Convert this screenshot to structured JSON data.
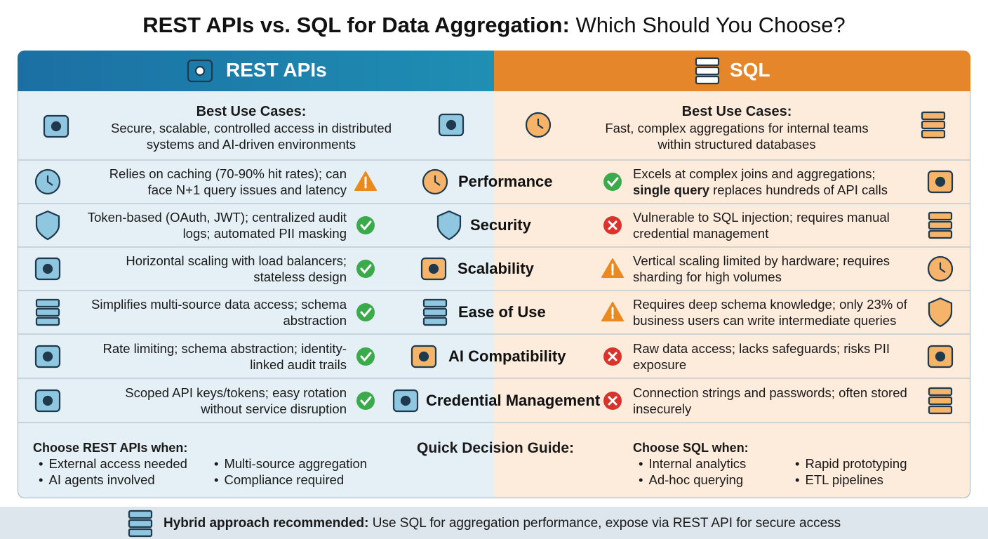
{
  "header": {
    "title_bold": "REST APIs vs. SQL for Data Aggregation:",
    "title_regular": "Which Should You Choose?"
  },
  "columns": {
    "rest": "REST APIs",
    "sql": "SQL"
  },
  "best_use": {
    "rest": {
      "heading": "Best Use Cases:",
      "text": "Secure, scalable, controlled access in distributed systems and AI-driven environments"
    },
    "sql": {
      "heading": "Best Use Cases:",
      "text": "Fast, complex aggregations for internal teams within structured databases"
    }
  },
  "rows": [
    {
      "label": "Performance",
      "rest_text": "Relies on caching (70-90% hit rates); can face N+1 query issues and latency",
      "rest_status": "warning",
      "sql_text": [
        {
          "text": "Excels at complex joins and aggregations; "
        },
        {
          "text": "single query",
          "bold": true
        },
        {
          "text": " replaces hundreds of API calls"
        }
      ],
      "sql_status": "check"
    },
    {
      "label": "Security",
      "rest_text": "Token-based (OAuth, JWT); centralized audit logs; automated PII masking",
      "rest_status": "check",
      "sql_text": "Vulnerable to SQL injection; requires manual credential management",
      "sql_status": "cross"
    },
    {
      "label": "Scalability",
      "rest_text": "Horizontal scaling with load balancers; stateless design",
      "rest_status": "check",
      "sql_text": "Vertical scaling limited by hardware; requires sharding for high volumes",
      "sql_status": "warning"
    },
    {
      "label": "Ease of Use",
      "rest_text": "Simplifies multi-source data access; schema abstraction",
      "rest_status": "check",
      "sql_text": "Requires deep schema knowledge; only 23% of business users can write intermediate queries",
      "sql_status": "warning"
    },
    {
      "label": "AI Compatibility",
      "rest_text": "Rate limiting; schema abstraction; identity-linked audit trails",
      "rest_status": "check",
      "sql_text": "Raw data access; lacks safeguards; risks PII exposure",
      "sql_status": "cross"
    },
    {
      "label": "Credential Management",
      "rest_text": "Scoped API keys/tokens; easy rotation without service disruption",
      "rest_status": "check",
      "sql_text": "Connection strings and passwords; often stored insecurely",
      "sql_status": "cross"
    }
  ],
  "guide": {
    "title": "Quick Decision Guide:",
    "rest": {
      "heading": "Choose REST APIs when:",
      "items": [
        "External access needed",
        "AI agents involved",
        "Multi-source aggregation",
        "Compliance required"
      ]
    },
    "sql": {
      "heading": "Choose SQL when:",
      "items": [
        "Internal analytics",
        "Ad-hoc querying",
        "Rapid prototyping",
        "ETL pipelines"
      ]
    }
  },
  "footer": {
    "bold": "Hybrid approach recommended:",
    "text": "Use SQL for aggregation performance, expose via REST API for secure access"
  }
}
